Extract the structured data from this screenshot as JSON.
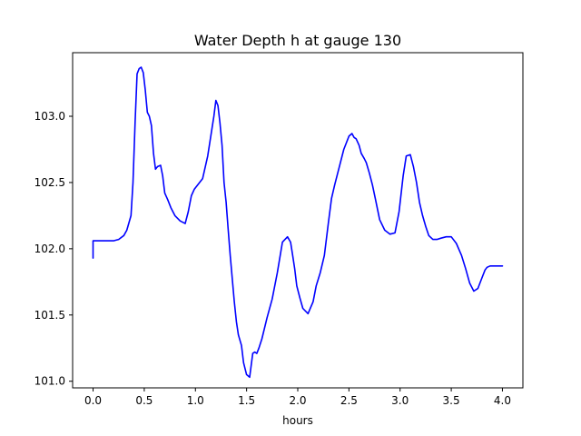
{
  "chart_data": {
    "type": "line",
    "title": "Water Depth h at gauge 130",
    "xlabel": "hours",
    "ylabel": "",
    "xlim": [
      -0.2,
      4.2
    ],
    "ylim": [
      100.95,
      103.48
    ],
    "grid": false,
    "x_ticks": [
      {
        "value": 0.0,
        "label": "0.0"
      },
      {
        "value": 0.5,
        "label": "0.5"
      },
      {
        "value": 1.0,
        "label": "1.0"
      },
      {
        "value": 1.5,
        "label": "1.5"
      },
      {
        "value": 2.0,
        "label": "2.0"
      },
      {
        "value": 2.5,
        "label": "2.5"
      },
      {
        "value": 3.0,
        "label": "3.0"
      },
      {
        "value": 3.5,
        "label": "3.5"
      },
      {
        "value": 4.0,
        "label": "4.0"
      }
    ],
    "y_ticks": [
      {
        "value": 101.0,
        "label": "101.0"
      },
      {
        "value": 101.5,
        "label": "101.5"
      },
      {
        "value": 102.0,
        "label": "102.0"
      },
      {
        "value": 102.5,
        "label": "102.5"
      },
      {
        "value": 103.0,
        "label": "103.0"
      }
    ],
    "series": [
      {
        "color": "#0000ff",
        "x": [
          0.0,
          0.0,
          0.1,
          0.2,
          0.25,
          0.3,
          0.33,
          0.37,
          0.39,
          0.41,
          0.43,
          0.45,
          0.47,
          0.49,
          0.51,
          0.53,
          0.55,
          0.57,
          0.59,
          0.61,
          0.63,
          0.66,
          0.68,
          0.7,
          0.73,
          0.76,
          0.8,
          0.85,
          0.9,
          0.93,
          0.96,
          0.99,
          1.03,
          1.07,
          1.12,
          1.15,
          1.18,
          1.2,
          1.22,
          1.24,
          1.26,
          1.28,
          1.3,
          1.32,
          1.34,
          1.36,
          1.38,
          1.4,
          1.42,
          1.45,
          1.47,
          1.5,
          1.53,
          1.56,
          1.58,
          1.6,
          1.62,
          1.65,
          1.7,
          1.75,
          1.8,
          1.85,
          1.9,
          1.93,
          1.95,
          1.97,
          1.99,
          2.02,
          2.05,
          2.1,
          2.15,
          2.18,
          2.22,
          2.26,
          2.3,
          2.33,
          2.36,
          2.4,
          2.45,
          2.5,
          2.53,
          2.55,
          2.57,
          2.6,
          2.62,
          2.65,
          2.67,
          2.7,
          2.73,
          2.76,
          2.8,
          2.85,
          2.9,
          2.95,
          2.99,
          3.03,
          3.06,
          3.1,
          3.13,
          3.16,
          3.19,
          3.22,
          3.25,
          3.28,
          3.32,
          3.36,
          3.4,
          3.45,
          3.5,
          3.55,
          3.6,
          3.64,
          3.68,
          3.72,
          3.76,
          3.8,
          3.83,
          3.85,
          3.88,
          3.92,
          3.96,
          4.0
        ],
        "y": [
          101.93,
          102.06,
          102.06,
          102.06,
          102.07,
          102.1,
          102.14,
          102.25,
          102.5,
          102.95,
          103.32,
          103.36,
          103.37,
          103.33,
          103.2,
          103.03,
          103.0,
          102.93,
          102.72,
          102.6,
          102.62,
          102.63,
          102.55,
          102.42,
          102.37,
          102.31,
          102.25,
          102.21,
          102.19,
          102.28,
          102.4,
          102.45,
          102.49,
          102.53,
          102.7,
          102.85,
          103.0,
          103.12,
          103.08,
          102.95,
          102.78,
          102.5,
          102.35,
          102.15,
          101.95,
          101.77,
          101.6,
          101.45,
          101.35,
          101.27,
          101.14,
          101.05,
          101.03,
          101.21,
          101.22,
          101.21,
          101.25,
          101.32,
          101.48,
          101.62,
          101.82,
          102.05,
          102.09,
          102.05,
          101.95,
          101.85,
          101.72,
          101.63,
          101.55,
          101.51,
          101.6,
          101.72,
          101.82,
          101.95,
          102.2,
          102.38,
          102.48,
          102.6,
          102.75,
          102.85,
          102.87,
          102.84,
          102.83,
          102.78,
          102.72,
          102.68,
          102.65,
          102.57,
          102.48,
          102.37,
          102.22,
          102.14,
          102.11,
          102.12,
          102.28,
          102.55,
          102.7,
          102.71,
          102.62,
          102.5,
          102.35,
          102.25,
          102.17,
          102.1,
          102.07,
          102.07,
          102.08,
          102.09,
          102.09,
          102.04,
          101.95,
          101.85,
          101.74,
          101.68,
          101.7,
          101.78,
          101.84,
          101.86,
          101.87,
          101.87,
          101.87,
          101.87
        ]
      }
    ]
  }
}
